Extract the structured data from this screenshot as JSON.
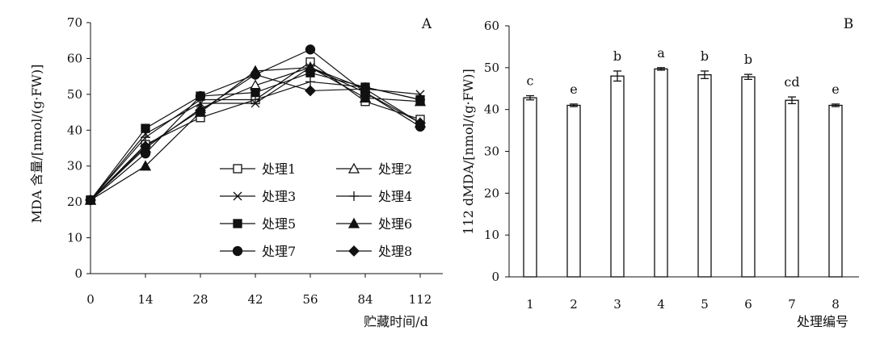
{
  "chart_data": [
    {
      "panel": "A",
      "type": "line",
      "xlabel": "贮藏时间/d",
      "ylabel": "MDA 含量/[nmol/(g·FW)]",
      "x": [
        0,
        14,
        28,
        42,
        56,
        84,
        112
      ],
      "ylim": [
        0,
        70
      ],
      "yticks": [
        0,
        10,
        20,
        30,
        40,
        50,
        60,
        70
      ],
      "grid": false,
      "legend_position": "bottom-right, two columns",
      "series": [
        {
          "name": "处理1",
          "marker": "open-square",
          "values": [
            20.5,
            36,
            43.5,
            48.5,
            59,
            48,
            43
          ]
        },
        {
          "name": "处理2",
          "marker": "open-triangle",
          "values": [
            20.5,
            35,
            46,
            52.5,
            57.5,
            50.5,
            42
          ]
        },
        {
          "name": "处理3",
          "marker": "x",
          "values": [
            20.5,
            39,
            47.5,
            47.5,
            57.5,
            51.5,
            50
          ]
        },
        {
          "name": "处理4",
          "marker": "plus",
          "values": [
            20.5,
            38,
            48.5,
            48.5,
            53.5,
            52,
            48.5
          ]
        },
        {
          "name": "处理5",
          "marker": "filled-square",
          "values": [
            20.5,
            40.5,
            49.5,
            50.5,
            56,
            52,
            48.5
          ]
        },
        {
          "name": "处理6",
          "marker": "filled-triangle",
          "values": [
            20.5,
            30,
            45,
            56.5,
            57.5,
            49,
            48
          ]
        },
        {
          "name": "处理7",
          "marker": "filled-circle",
          "values": [
            20.5,
            33.5,
            49.5,
            55.5,
            62.5,
            50.5,
            41
          ]
        },
        {
          "name": "处理8",
          "marker": "filled-diamond",
          "values": [
            20.5,
            35.5,
            45.5,
            55.5,
            51,
            51.5,
            42
          ]
        }
      ]
    },
    {
      "panel": "B",
      "type": "bar",
      "xlabel": "处理编号",
      "ylabel": "112 dMDA/[nmol/(g·FW)]",
      "categories": [
        "1",
        "2",
        "3",
        "4",
        "5",
        "6",
        "7",
        "8"
      ],
      "values": [
        42.8,
        41,
        48,
        49.7,
        48.3,
        47.8,
        42.2,
        41
      ],
      "errors": [
        0.5,
        0.3,
        1.2,
        0.3,
        0.9,
        0.6,
        0.8,
        0.3
      ],
      "labels": [
        "c",
        "e",
        "b",
        "a",
        "b",
        "b",
        "cd",
        "e"
      ],
      "ylim": [
        0,
        60
      ],
      "yticks": [
        0,
        10,
        20,
        30,
        40,
        50,
        60
      ],
      "grid": false
    }
  ]
}
